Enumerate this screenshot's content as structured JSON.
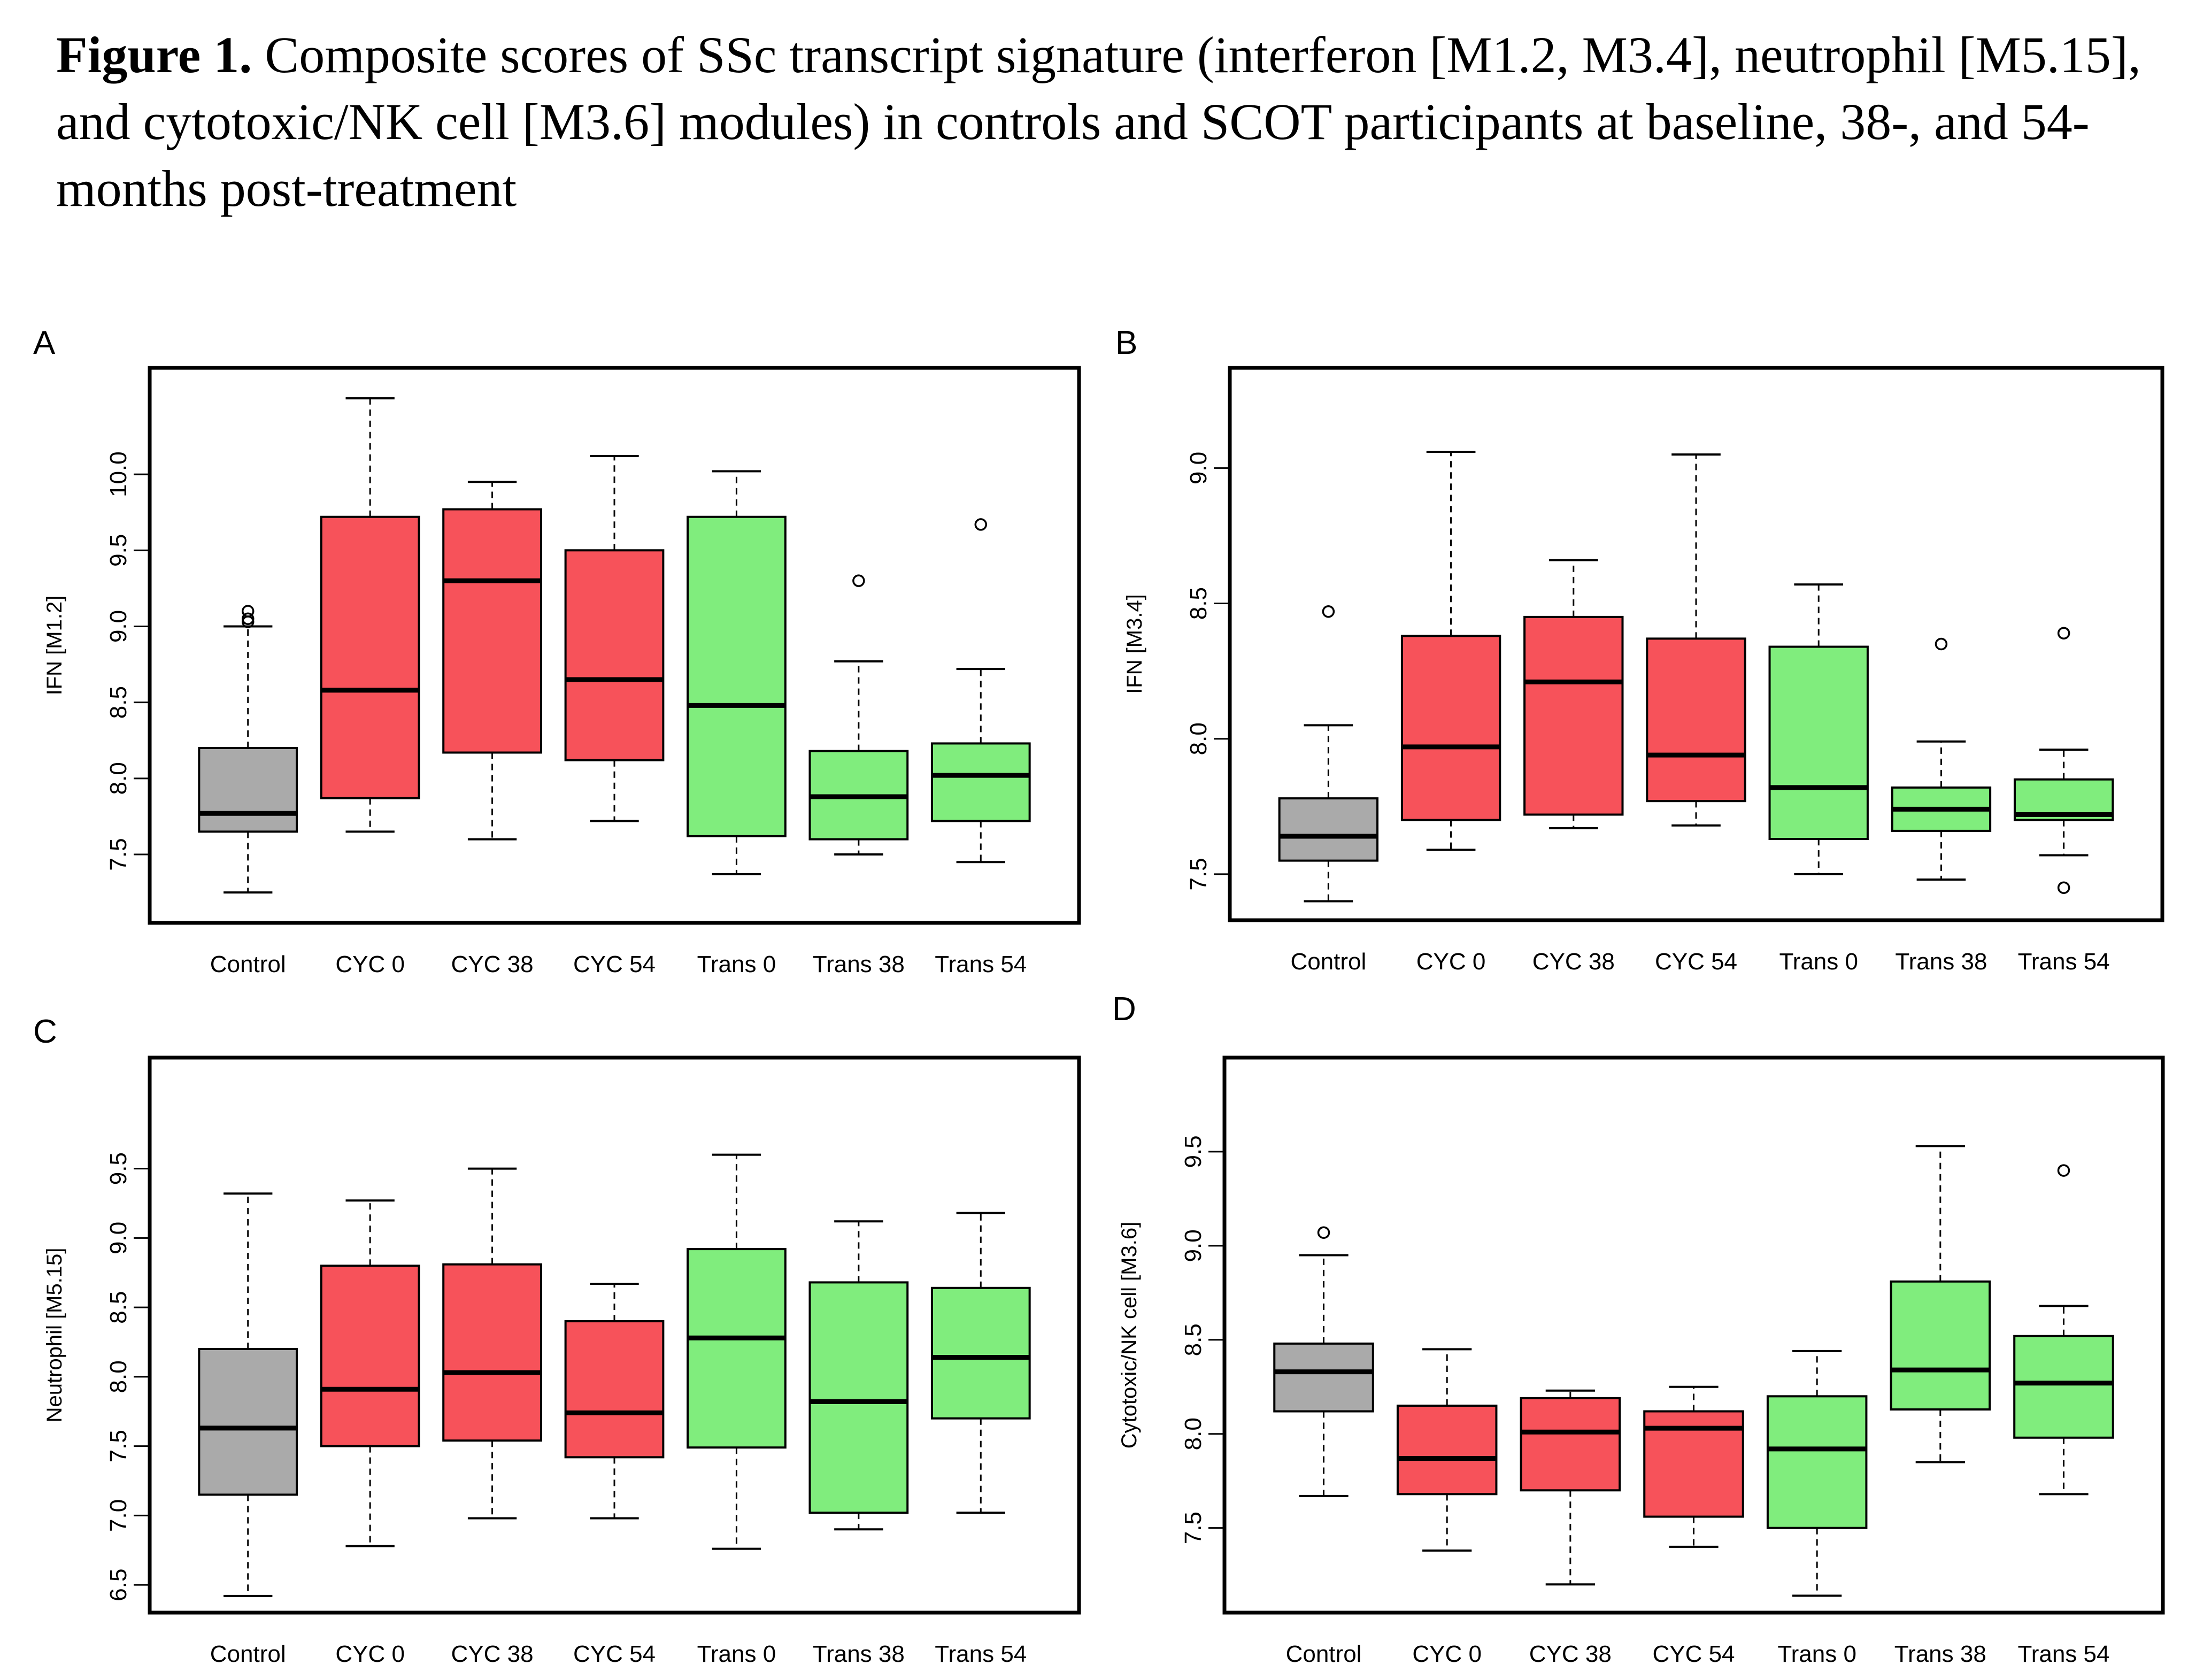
{
  "caption": {
    "label": "Figure 1.",
    "text": " Composite scores of SSc transcript signature (interferon [M1.2, M3.4], neutrophil [M5.15], and cytotoxic/NK cell [M3.6] modules) in controls and SCOT participants at baseline, 38-, and 54-months post-treatment"
  },
  "colors": {
    "control": "#aaaaaa",
    "cyc": "#f7525a",
    "trans": "#80ed7d"
  },
  "chart_data": [
    {
      "type": "boxplot",
      "panel": "A",
      "ylabel": "IFN [M1.2]",
      "ylim": [
        7.05,
        10.7
      ],
      "yticks": [
        7.5,
        8.0,
        8.5,
        9.0,
        9.5,
        10.0
      ],
      "categories": [
        "Control",
        "CYC 0",
        "CYC 38",
        "CYC 54",
        "Trans 0",
        "Trans 38",
        "Trans 54"
      ],
      "groups": [
        "control",
        "cyc",
        "cyc",
        "cyc",
        "trans",
        "trans",
        "trans"
      ],
      "boxes": [
        {
          "min": 7.25,
          "q1": 7.65,
          "median": 7.77,
          "q3": 8.2,
          "max": 9.0,
          "outliers": [
            9.1,
            9.05,
            9.03
          ]
        },
        {
          "min": 7.65,
          "q1": 7.87,
          "median": 8.58,
          "q3": 9.72,
          "max": 10.5,
          "outliers": []
        },
        {
          "min": 7.6,
          "q1": 8.17,
          "median": 9.3,
          "q3": 9.77,
          "max": 9.95,
          "outliers": []
        },
        {
          "min": 7.72,
          "q1": 8.12,
          "median": 8.65,
          "q3": 9.5,
          "max": 10.12,
          "outliers": []
        },
        {
          "min": 7.37,
          "q1": 7.62,
          "median": 8.48,
          "q3": 9.72,
          "max": 10.02,
          "outliers": []
        },
        {
          "min": 7.5,
          "q1": 7.6,
          "median": 7.88,
          "q3": 8.18,
          "max": 8.77,
          "outliers": [
            9.3
          ]
        },
        {
          "min": 7.45,
          "q1": 7.72,
          "median": 8.02,
          "q3": 8.23,
          "max": 8.72,
          "outliers": [
            9.67
          ]
        }
      ]
    },
    {
      "type": "boxplot",
      "panel": "B",
      "ylabel": "IFN [M3.4]",
      "ylim": [
        7.33,
        9.37
      ],
      "yticks": [
        7.5,
        8.0,
        8.5,
        9.0
      ],
      "categories": [
        "Control",
        "CYC 0",
        "CYC 38",
        "CYC 54",
        "Trans 0",
        "Trans 38",
        "Trans 54"
      ],
      "groups": [
        "control",
        "cyc",
        "cyc",
        "cyc",
        "trans",
        "trans",
        "trans"
      ],
      "boxes": [
        {
          "min": 7.4,
          "q1": 7.55,
          "median": 7.64,
          "q3": 7.78,
          "max": 8.05,
          "outliers": [
            8.47
          ]
        },
        {
          "min": 7.59,
          "q1": 7.7,
          "median": 7.97,
          "q3": 8.38,
          "max": 9.06,
          "outliers": []
        },
        {
          "min": 7.67,
          "q1": 7.72,
          "median": 8.21,
          "q3": 8.45,
          "max": 8.66,
          "outliers": []
        },
        {
          "min": 7.68,
          "q1": 7.77,
          "median": 7.94,
          "q3": 8.37,
          "max": 9.05,
          "outliers": []
        },
        {
          "min": 7.5,
          "q1": 7.63,
          "median": 7.82,
          "q3": 8.34,
          "max": 8.57,
          "outliers": []
        },
        {
          "min": 7.48,
          "q1": 7.66,
          "median": 7.74,
          "q3": 7.82,
          "max": 7.99,
          "outliers": [
            8.35
          ]
        },
        {
          "min": 7.57,
          "q1": 7.7,
          "median": 7.72,
          "q3": 7.85,
          "max": 7.96,
          "outliers": [
            8.39,
            7.45
          ]
        }
      ]
    },
    {
      "type": "boxplot",
      "panel": "C",
      "ylabel": "Neutrophil [M5.15]",
      "ylim": [
        6.3,
        10.3
      ],
      "yticks": [
        6.5,
        7.0,
        7.5,
        8.0,
        8.5,
        9.0,
        9.5
      ],
      "categories": [
        "Control",
        "CYC 0",
        "CYC 38",
        "CYC 54",
        "Trans 0",
        "Trans 38",
        "Trans 54"
      ],
      "groups": [
        "control",
        "cyc",
        "cyc",
        "cyc",
        "trans",
        "trans",
        "trans"
      ],
      "boxes": [
        {
          "min": 6.42,
          "q1": 7.15,
          "median": 7.63,
          "q3": 8.2,
          "max": 9.32,
          "outliers": []
        },
        {
          "min": 6.78,
          "q1": 7.5,
          "median": 7.91,
          "q3": 8.8,
          "max": 9.27,
          "outliers": []
        },
        {
          "min": 6.98,
          "q1": 7.54,
          "median": 8.03,
          "q3": 8.81,
          "max": 9.5,
          "outliers": []
        },
        {
          "min": 6.98,
          "q1": 7.42,
          "median": 7.74,
          "q3": 8.4,
          "max": 8.67,
          "outliers": []
        },
        {
          "min": 6.76,
          "q1": 7.49,
          "median": 8.28,
          "q3": 8.92,
          "max": 9.6,
          "outliers": []
        },
        {
          "min": 6.9,
          "q1": 7.02,
          "median": 7.82,
          "q3": 8.68,
          "max": 9.12,
          "outliers": []
        },
        {
          "min": 7.02,
          "q1": 7.7,
          "median": 8.14,
          "q3": 8.64,
          "max": 9.18,
          "outliers": []
        }
      ]
    },
    {
      "type": "boxplot",
      "panel": "D",
      "ylabel": "Cytotoxic/NK cell [M3.6]",
      "ylim": [
        7.05,
        10.0
      ],
      "yticks": [
        7.5,
        8.0,
        8.5,
        9.0,
        9.5
      ],
      "categories": [
        "Control",
        "CYC 0",
        "CYC 38",
        "CYC 54",
        "Trans 0",
        "Trans 38",
        "Trans 54"
      ],
      "groups": [
        "control",
        "cyc",
        "cyc",
        "cyc",
        "trans",
        "trans",
        "trans"
      ],
      "boxes": [
        {
          "min": 7.67,
          "q1": 8.12,
          "median": 8.33,
          "q3": 8.48,
          "max": 8.95,
          "outliers": [
            9.07
          ]
        },
        {
          "min": 7.38,
          "q1": 7.68,
          "median": 7.87,
          "q3": 8.15,
          "max": 8.45,
          "outliers": []
        },
        {
          "min": 7.2,
          "q1": 7.7,
          "median": 8.01,
          "q3": 8.19,
          "max": 8.23,
          "outliers": []
        },
        {
          "min": 7.4,
          "q1": 7.56,
          "median": 8.03,
          "q3": 8.12,
          "max": 8.25,
          "outliers": []
        },
        {
          "min": 7.14,
          "q1": 7.5,
          "median": 7.92,
          "q3": 8.2,
          "max": 8.44,
          "outliers": []
        },
        {
          "min": 7.85,
          "q1": 8.13,
          "median": 8.34,
          "q3": 8.81,
          "max": 9.53,
          "outliers": []
        },
        {
          "min": 7.68,
          "q1": 7.98,
          "median": 8.27,
          "q3": 8.52,
          "max": 8.68,
          "outliers": [
            9.4
          ]
        }
      ]
    }
  ]
}
